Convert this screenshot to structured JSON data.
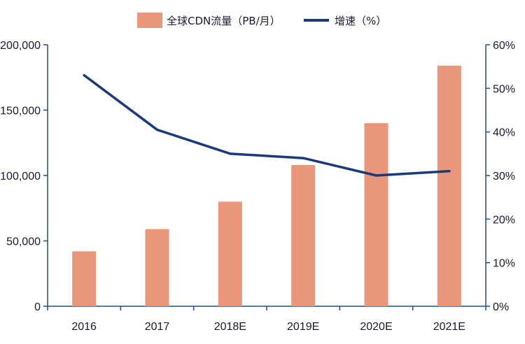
{
  "chart_data": {
    "type": "bar+line",
    "categories": [
      "2016",
      "2017",
      "2018E",
      "2019E",
      "2020E",
      "2021E"
    ],
    "series": [
      {
        "name": "全球CDN流量（PB/月）",
        "type": "bar",
        "axis": "left",
        "values": [
          42000,
          59000,
          80000,
          108000,
          140000,
          184000
        ]
      },
      {
        "name": "增速（%）",
        "type": "line",
        "axis": "right",
        "values": [
          53,
          40.5,
          35,
          34,
          30,
          31
        ]
      }
    ],
    "y_left": {
      "min": 0,
      "max": 200000,
      "ticks": [
        "0",
        "50,000",
        "100,000",
        "150,000",
        "200,000"
      ]
    },
    "y_right": {
      "min": 0,
      "max": 60,
      "ticks": [
        "0%",
        "10%",
        "20%",
        "30%",
        "40%",
        "50%",
        "60%"
      ]
    },
    "legend_position": "top",
    "grid": false,
    "colors": {
      "bar": "#E9967A",
      "line": "#1B3A7A",
      "axis": "#1F4E8C",
      "text": "#1a1a2e"
    }
  }
}
